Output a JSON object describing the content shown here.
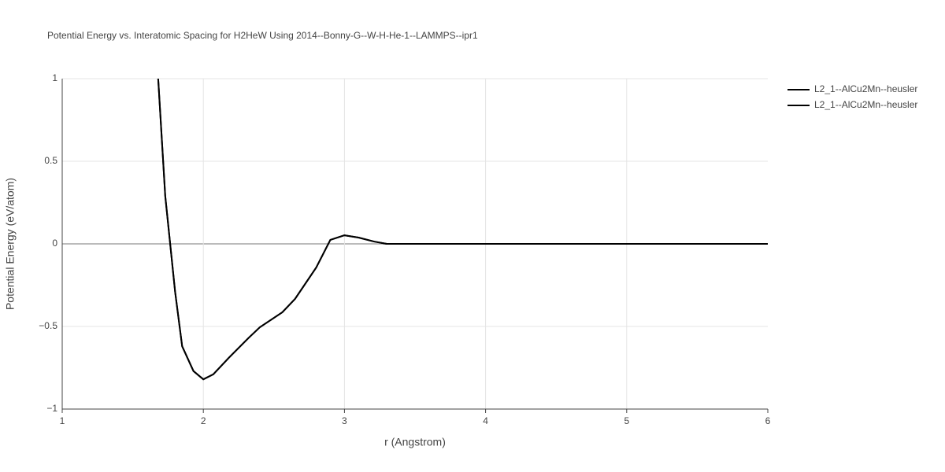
{
  "chart_data": {
    "type": "line",
    "title": "Potential Energy vs. Interatomic Spacing for H2HeW Using 2014--Bonny-G--W-H-He-1--LAMMPS--ipr1",
    "x_label": "r (Angstrom)",
    "y_label": "Potential Energy (eV/atom)",
    "xlim": [
      1,
      6
    ],
    "ylim": [
      -1,
      1
    ],
    "xticks": [
      1,
      2,
      3,
      4,
      5,
      6
    ],
    "yticks": [
      {
        "value": -1,
        "label": "−1"
      },
      {
        "value": -0.5,
        "label": "−0.5"
      },
      0,
      0.5,
      1
    ],
    "grid": true,
    "legend": "top-right",
    "x": [
      1.68,
      1.73,
      1.8,
      1.85,
      1.93,
      2.0,
      2.07,
      2.18,
      2.32,
      2.4,
      2.56,
      2.65,
      2.8,
      2.9,
      3.0,
      3.1,
      3.21,
      3.3,
      4.0,
      5.0,
      6.0
    ],
    "series": [
      {
        "name": "L2_1--AlCu2Mn--heusler",
        "color": "#000000",
        "values": [
          1.0,
          0.29,
          -0.29,
          -0.62,
          -0.77,
          -0.82,
          -0.79,
          -0.69,
          -0.57,
          -0.505,
          -0.414,
          -0.333,
          -0.143,
          0.024,
          0.052,
          0.038,
          0.014,
          0.0,
          0.0,
          0.0,
          0.0
        ]
      },
      {
        "name": "L2_1--AlCu2Mn--heusler",
        "color": "#000000",
        "values": [
          1.0,
          0.29,
          -0.29,
          -0.62,
          -0.77,
          -0.82,
          -0.79,
          -0.69,
          -0.57,
          -0.505,
          -0.414,
          -0.333,
          -0.143,
          0.024,
          0.052,
          0.038,
          0.014,
          0.0,
          0.0,
          0.0,
          0.0
        ]
      }
    ]
  }
}
